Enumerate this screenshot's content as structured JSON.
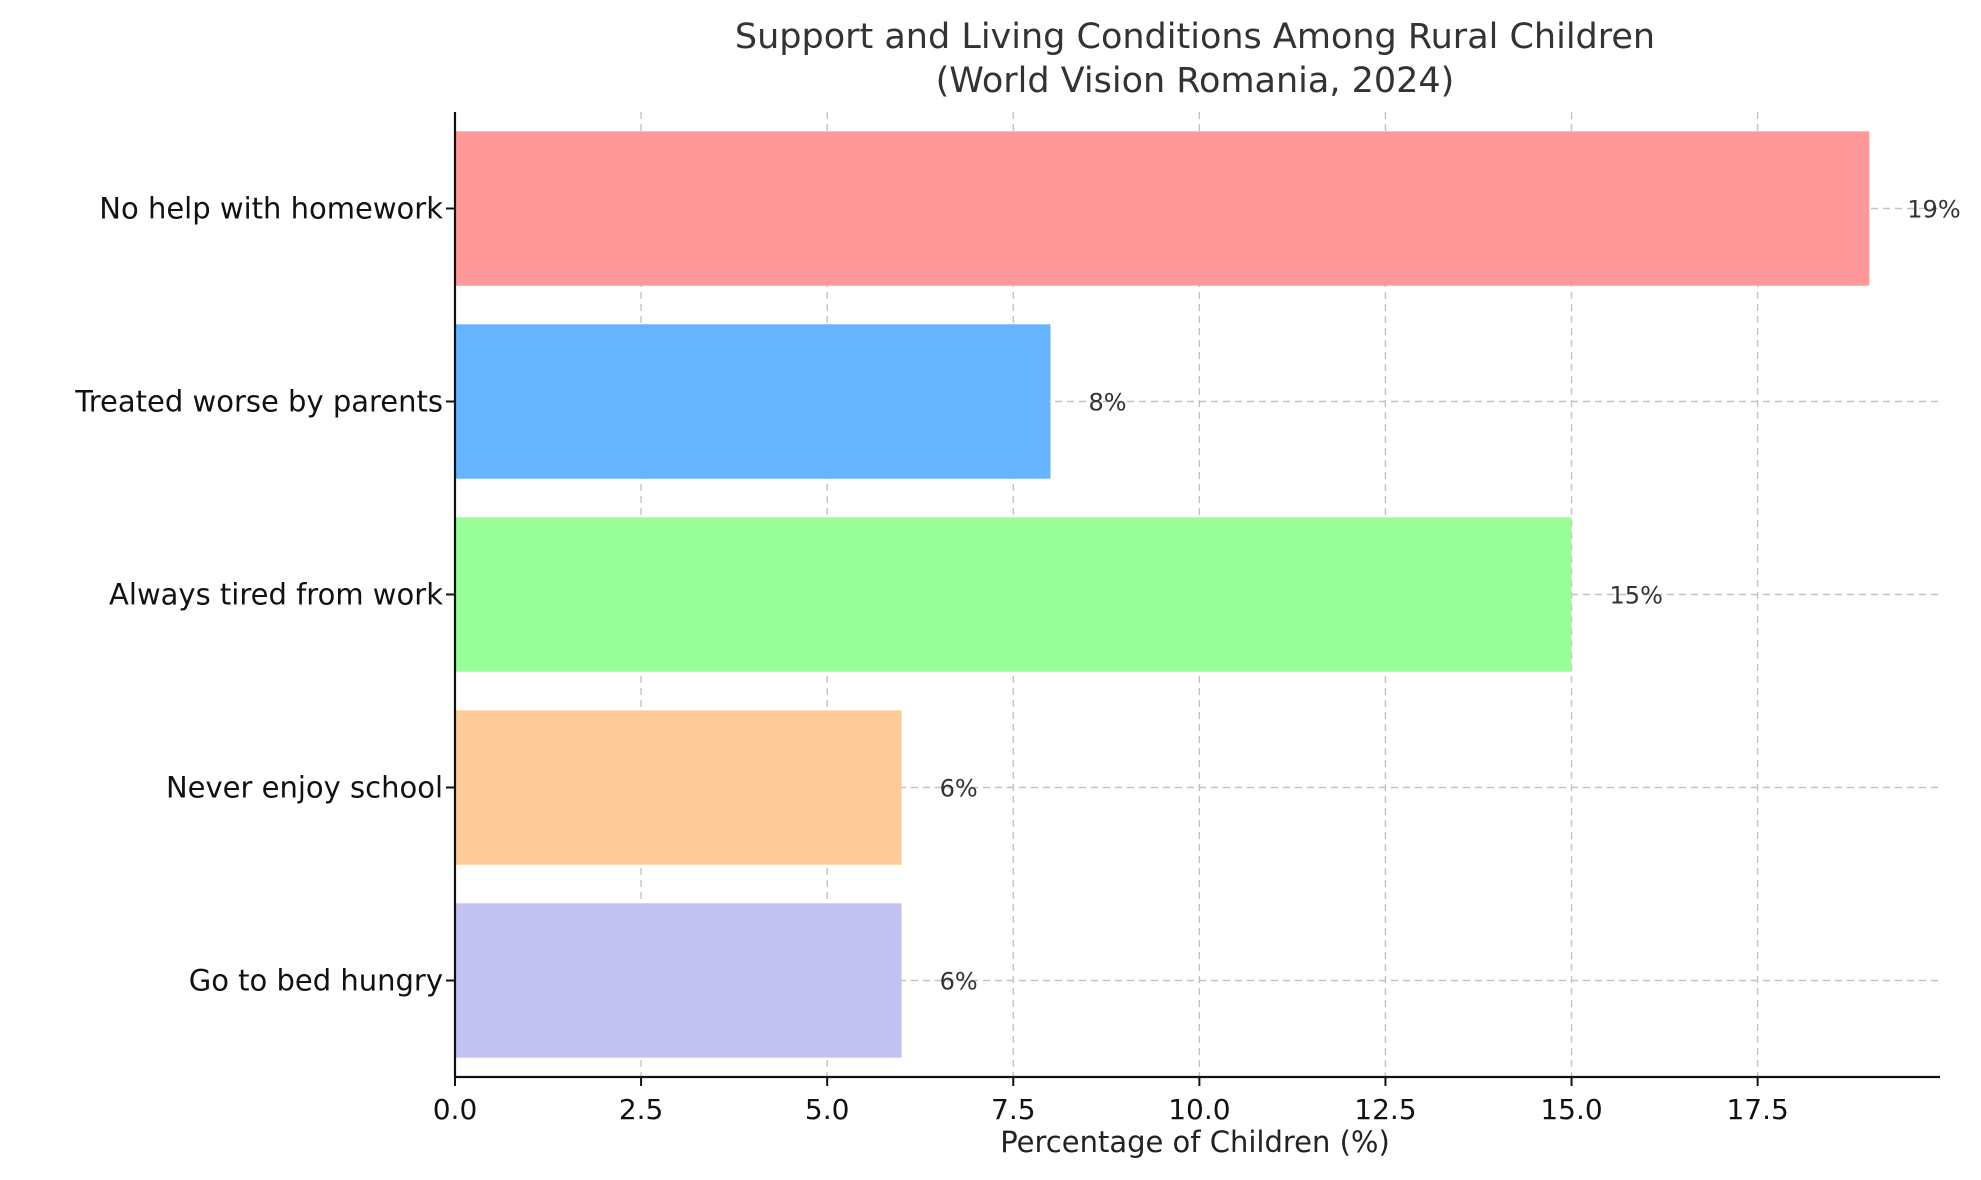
{
  "chart_data": {
    "type": "bar",
    "orientation": "horizontal",
    "title": "Support and Living Conditions Among Rural Children",
    "subtitle": "(World Vision Romania, 2024)",
    "xlabel": "Percentage of Children (%)",
    "ylabel": "",
    "xlim": [
      0,
      19.95
    ],
    "x_ticks": [
      0.0,
      2.5,
      5.0,
      7.5,
      10.0,
      12.5,
      15.0,
      17.5
    ],
    "x_tick_labels": [
      "0.0",
      "2.5",
      "5.0",
      "7.5",
      "10.0",
      "12.5",
      "15.0",
      "17.5"
    ],
    "grid": true,
    "categories": [
      "No help with homework",
      "Treated worse by parents",
      "Always tired from work",
      "Never enjoy school",
      "Go to bed hungry"
    ],
    "values": [
      19,
      8,
      15,
      6,
      6
    ],
    "value_labels": [
      "19%",
      "8%",
      "15%",
      "6%",
      "6%"
    ],
    "colors": [
      "#ff9999",
      "#66b3ff",
      "#99ff99",
      "#ffcc99",
      "#c2c2f0"
    ]
  }
}
